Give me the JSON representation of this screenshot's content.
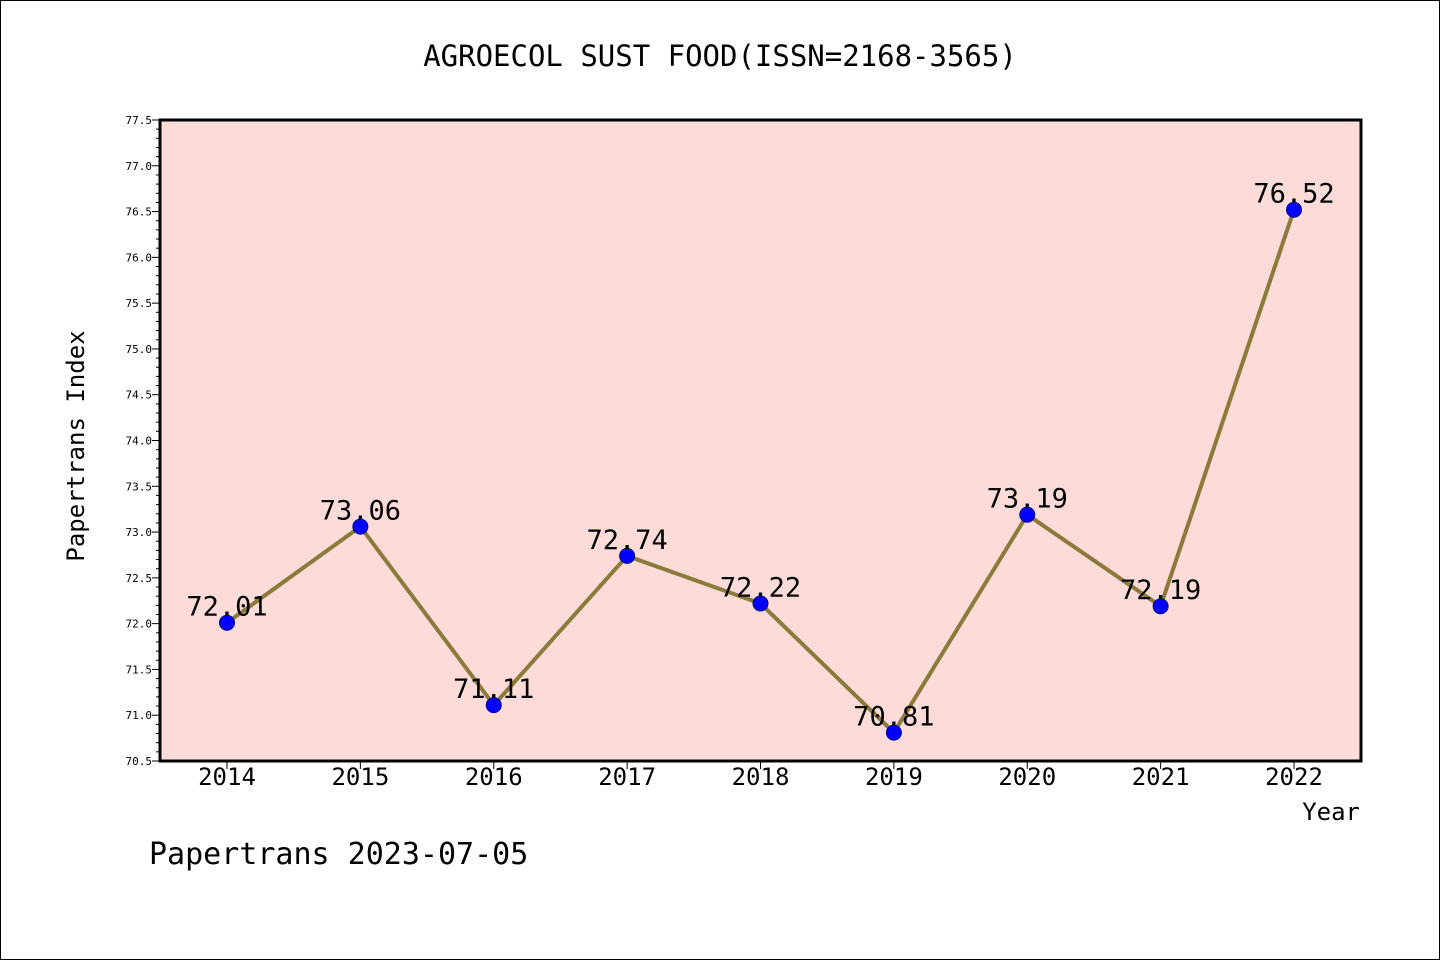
{
  "chart_data": {
    "type": "line",
    "title": "AGROECOL SUST FOOD(ISSN=2168-3565)",
    "xlabel": "Year",
    "ylabel": "Papertrans Index",
    "categories": [
      "2014",
      "2015",
      "2016",
      "2017",
      "2018",
      "2019",
      "2020",
      "2021",
      "2022"
    ],
    "series": [
      {
        "values": [
          72.01,
          73.06,
          71.11,
          72.74,
          72.22,
          70.81,
          73.19,
          72.19,
          76.52
        ],
        "labels": [
          "72.01",
          "73.06",
          "71.11",
          "72.74",
          "72.22",
          "70.81",
          "73.19",
          "72.19",
          "76.52"
        ]
      }
    ],
    "ylim": [
      70.5,
      77.5
    ],
    "yticks": [
      "70.5",
      "71.0",
      "71.5",
      "72.0",
      "72.5",
      "73.0",
      "73.5",
      "74.0",
      "74.5",
      "75.0",
      "75.5",
      "76.0",
      "76.5",
      "77.0",
      "77.5"
    ],
    "grid": false,
    "legend": "none",
    "colors": {
      "plot_background": "#fddbd9",
      "line": "#8b7a3a",
      "marker_fill": "#0000ff",
      "marker_edge": "#00008b",
      "axis": "#000000"
    }
  },
  "footer": {
    "text": "Papertrans 2023-07-05"
  }
}
